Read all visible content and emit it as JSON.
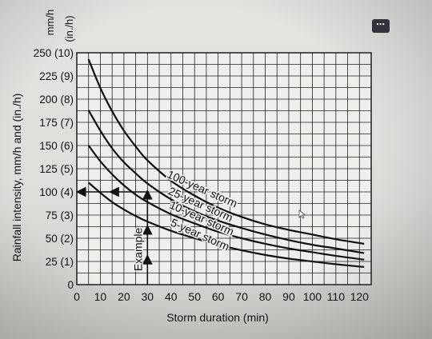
{
  "menu": {
    "more_label": "⋯",
    "icon": "more-horizontal-icon"
  },
  "chart_data": {
    "type": "line",
    "title": "",
    "xlabel": "Storm duration (min)",
    "ylabel": "Rainfall intensity, mm/h and (in./h)",
    "y_units_label_1": "mm/h",
    "y_units_label_2": "(in./h)",
    "xlim": [
      0,
      125
    ],
    "ylim": [
      0,
      250
    ],
    "x_ticks": [
      0,
      10,
      20,
      30,
      40,
      50,
      60,
      70,
      80,
      90,
      100,
      110,
      120
    ],
    "x_tick_labels": [
      "0",
      "10",
      "20",
      "30",
      "40",
      "50",
      "60",
      "70",
      "80",
      "90",
      "100",
      "110",
      "120"
    ],
    "y_ticks": [
      0,
      25,
      50,
      75,
      100,
      125,
      150,
      175,
      200,
      225,
      250
    ],
    "y_tick_labels": [
      "0",
      "25 (1)",
      "50 (2)",
      "75 (3)",
      "100 (4)",
      "125 (5)",
      "150 (6)",
      "175 (7)",
      "200 (8)",
      "225 (9)",
      "250 (10)"
    ],
    "grid": true,
    "series": [
      {
        "name": "100-year storm",
        "x": [
          5,
          10,
          15,
          20,
          25,
          30,
          40,
          50,
          60,
          70,
          80,
          90,
          100,
          110,
          122
        ],
        "values": [
          243,
          212,
          187,
          166,
          149,
          134,
          112,
          96,
          83,
          73,
          65,
          59,
          54,
          49,
          44
        ]
      },
      {
        "name": "25-year storm",
        "x": [
          5,
          10,
          15,
          20,
          25,
          30,
          40,
          50,
          60,
          70,
          80,
          90,
          100,
          110,
          122
        ],
        "values": [
          188,
          166,
          147,
          132,
          120,
          109,
          92,
          79,
          69,
          61,
          54,
          48,
          43,
          39,
          34
        ]
      },
      {
        "name": "10-year storm",
        "x": [
          5,
          10,
          15,
          20,
          25,
          30,
          40,
          50,
          60,
          70,
          80,
          90,
          100,
          110,
          122
        ],
        "values": [
          150,
          133,
          119,
          107,
          97,
          89,
          76,
          66,
          57,
          50,
          44,
          39,
          35,
          31,
          27
        ]
      },
      {
        "name": "5-year storm",
        "x": [
          5,
          10,
          15,
          20,
          25,
          30,
          40,
          50,
          60,
          70,
          80,
          90,
          100,
          110,
          122
        ],
        "values": [
          110,
          99,
          89,
          81,
          74,
          68,
          58,
          50,
          43,
          37,
          32,
          28,
          25,
          22,
          19
        ]
      }
    ],
    "annotations": [
      {
        "text": "Example",
        "x": 30,
        "from_y": 0,
        "to_y": 100,
        "then_to_x": 0
      }
    ]
  }
}
